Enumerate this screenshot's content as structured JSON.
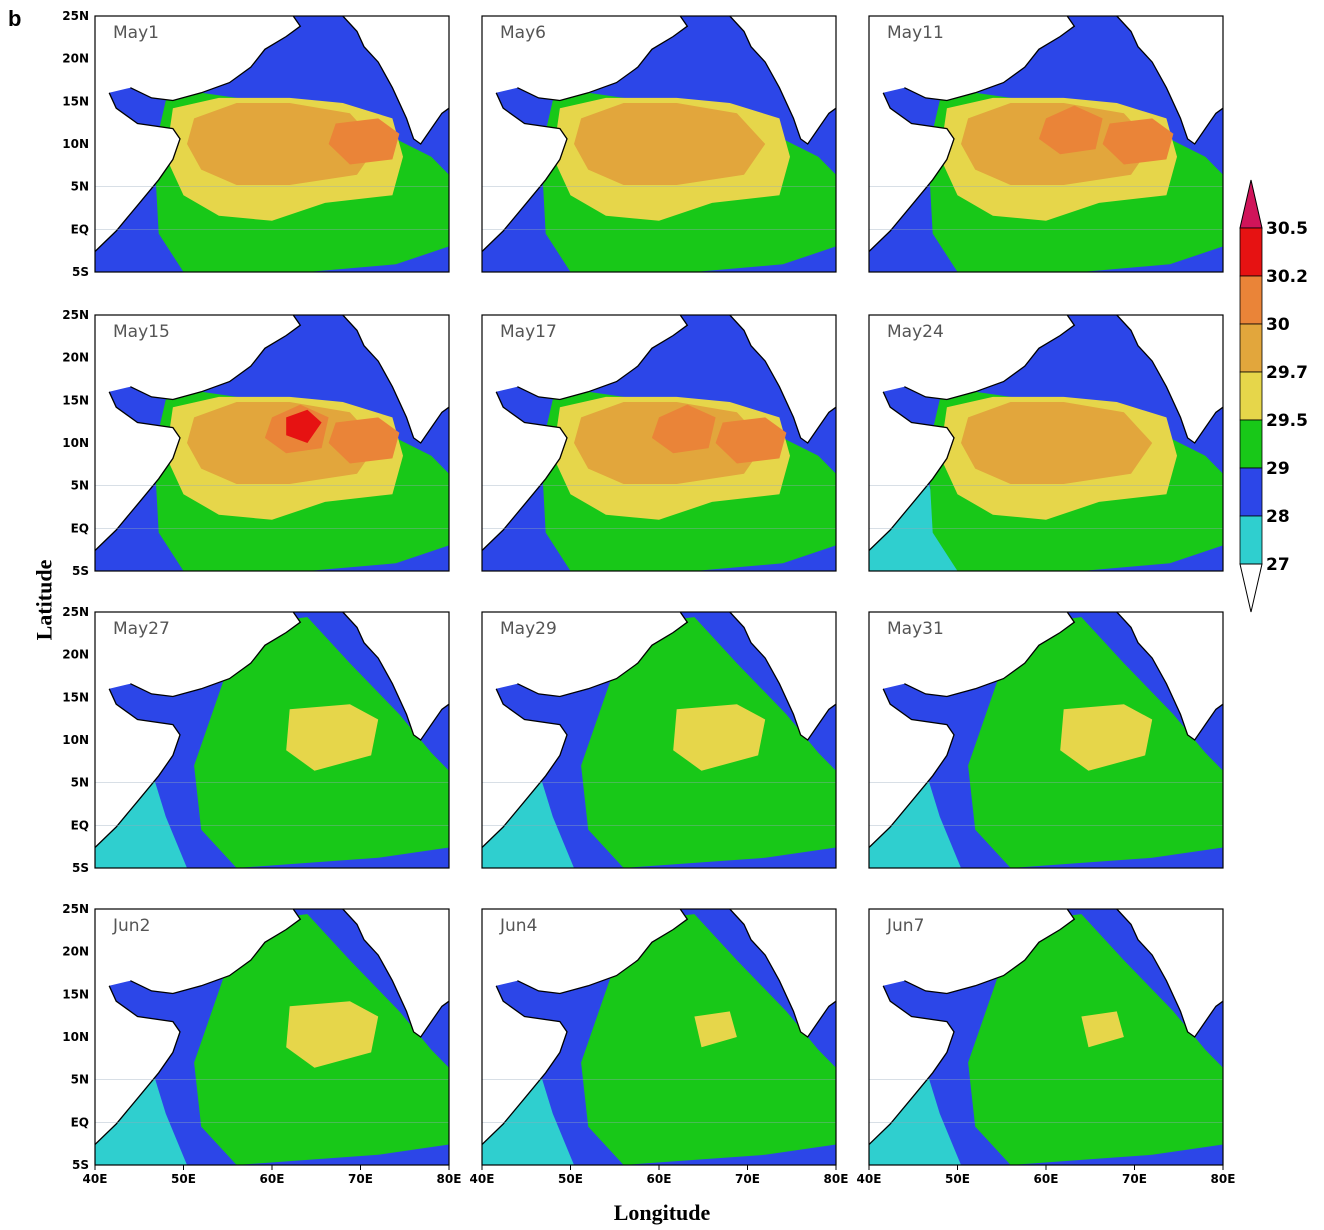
{
  "panel_label": "b",
  "axes": {
    "xlabel": "Longitude",
    "ylabel": "Latitude",
    "lon_ticks": [
      "40E",
      "50E",
      "60E",
      "70E",
      "80E"
    ],
    "lat_ticks": [
      "25N",
      "20N",
      "15N",
      "10N",
      "5N",
      "EQ",
      "5S"
    ],
    "lon_range": [
      40,
      80
    ],
    "lat_range": [
      -5,
      25
    ]
  },
  "colors": {
    "below_27": "#ffffff",
    "27_28": "#2fcfcf",
    "28_29": "#2c46e8",
    "29_29.5": "#18c818",
    "29.5_29.7": "#e6d64a",
    "29.7_30": "#e2a63c",
    "30_30.2": "#ea8438",
    "30.2_30.5": "#e61212",
    "above_30.5": "#d0145a"
  },
  "colorbar": {
    "levels": [
      "30.5",
      "30.2",
      "30",
      "29.7",
      "29.5",
      "29",
      "28",
      "27"
    ]
  },
  "panels": [
    {
      "date": "May1",
      "level": 4
    },
    {
      "date": "May6",
      "level": 3
    },
    {
      "date": "May11",
      "level": 5
    },
    {
      "date": "May15",
      "level": 6
    },
    {
      "date": "May17",
      "level": 5
    },
    {
      "date": "May24",
      "level": 3
    },
    {
      "date": "May27",
      "level": 1
    },
    {
      "date": "May29",
      "level": 1
    },
    {
      "date": "May31",
      "level": 1
    },
    {
      "date": "Jun2",
      "level": 1
    },
    {
      "date": "Jun4",
      "level": 0
    },
    {
      "date": "Jun7",
      "level": 0
    }
  ]
}
